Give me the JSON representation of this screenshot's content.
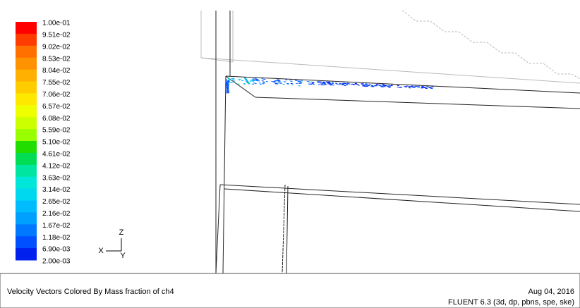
{
  "legend": {
    "labels": [
      "1.00e-01",
      "9.51e-02",
      "9.02e-02",
      "8.53e-02",
      "8.04e-02",
      "7.55e-02",
      "7.06e-02",
      "6.57e-02",
      "6.08e-02",
      "5.59e-02",
      "5.10e-02",
      "4.61e-02",
      "4.12e-02",
      "3.63e-02",
      "3.14e-02",
      "2.65e-02",
      "2.16e-02",
      "1.67e-02",
      "1.18e-02",
      "6.90e-03",
      "2.00e-03"
    ],
    "colors": [
      "#ff0000",
      "#ff3c00",
      "#ff7000",
      "#ff9200",
      "#ffb000",
      "#ffcc00",
      "#ffe800",
      "#eeff00",
      "#ccff00",
      "#99ff00",
      "#22dd00",
      "#00dd55",
      "#00e6a0",
      "#00e6d8",
      "#00d8f0",
      "#00bcff",
      "#00a0ff",
      "#0078ff",
      "#0050ff",
      "#0020ee"
    ]
  },
  "axes": {
    "z": "Z",
    "x": "X",
    "y": "Y"
  },
  "footer": {
    "title": "Velocity Vectors Colored By Mass fraction of ch4",
    "date": "Aug 04, 2016",
    "solver": "FLUENT 6.3 (3d, dp, pbns, spe, ske)"
  }
}
